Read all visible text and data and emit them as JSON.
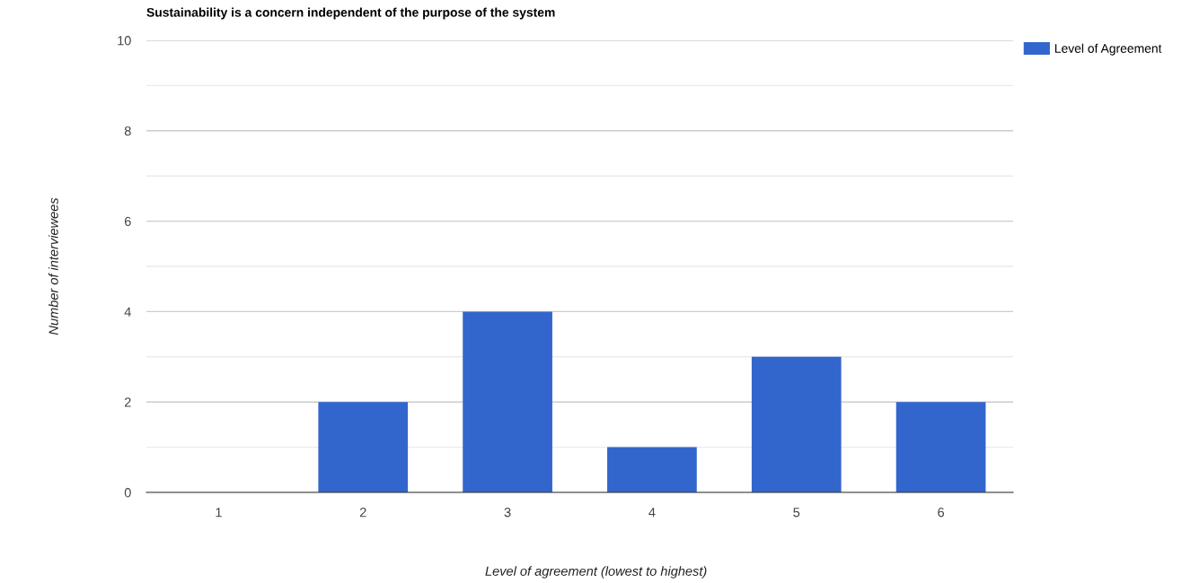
{
  "chart_data": {
    "type": "bar",
    "title": "Sustainability is a concern independent of the purpose of the system",
    "xlabel": "Level of agreement (lowest to highest)",
    "ylabel": "Number of interviewees",
    "categories": [
      "1",
      "2",
      "3",
      "4",
      "5",
      "6"
    ],
    "series": [
      {
        "name": "Level of Agreement",
        "color": "#3366cc",
        "values": [
          0,
          2,
          4,
          1,
          3,
          2
        ]
      }
    ],
    "ylim": [
      0,
      10
    ],
    "yticks": [
      0,
      {
        "value": 1,
        "label": null
      },
      2,
      {
        "value": 3,
        "label": null
      },
      4,
      {
        "value": 5,
        "label": null
      },
      6,
      {
        "value": 7,
        "label": null
      },
      8,
      {
        "value": 9,
        "label": null
      },
      10
    ],
    "grid": "y",
    "legend": "top right"
  }
}
